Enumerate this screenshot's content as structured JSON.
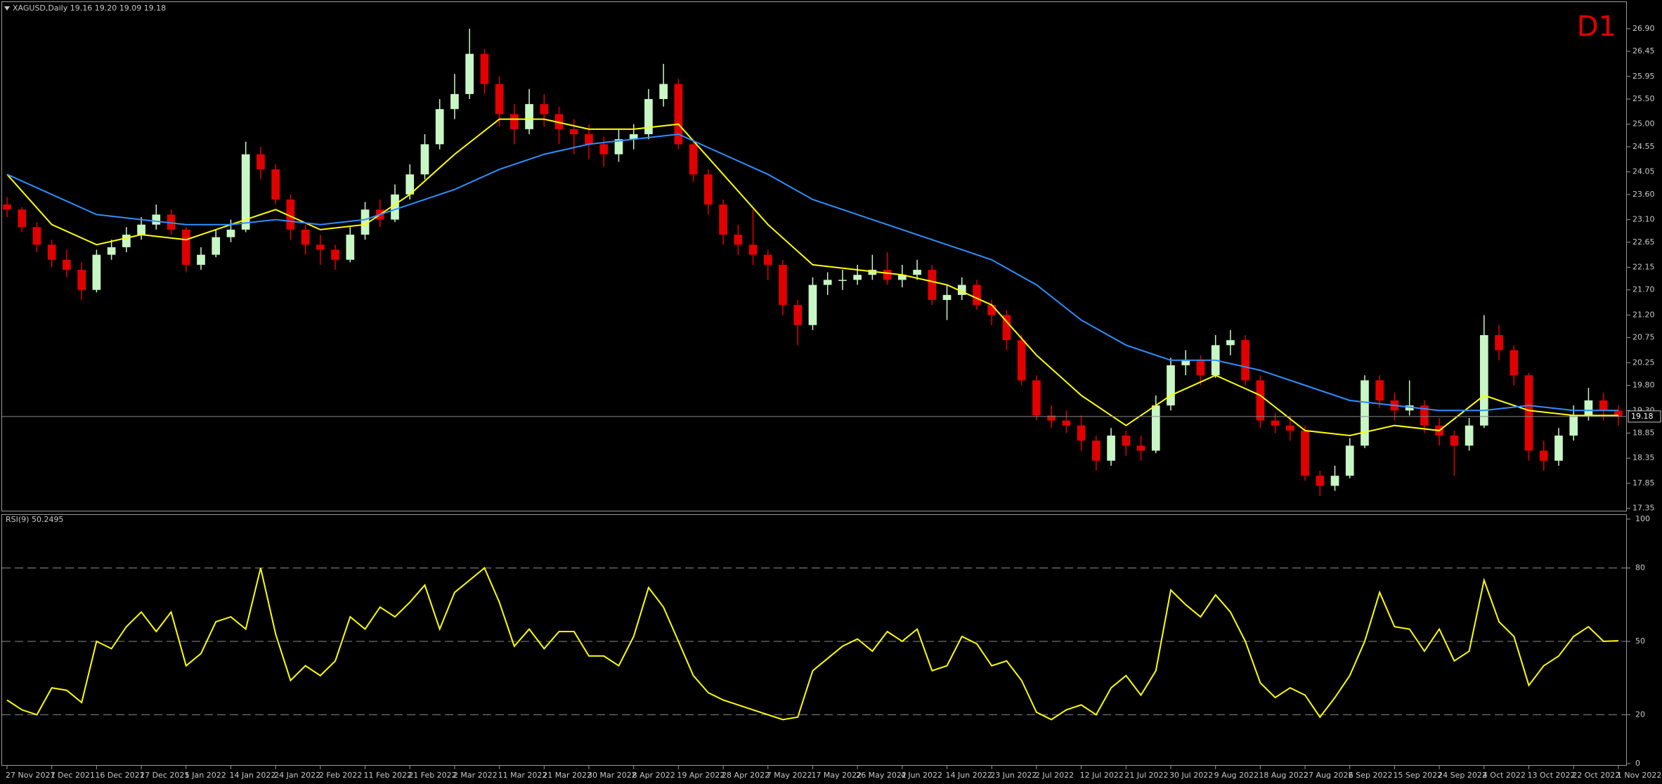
{
  "chart_data": [
    {
      "type": "candlestick",
      "title": "XAGUSD,Daily  19.16 19.20 19.09 19.18",
      "annotation": "D1",
      "up_color": "#c8f7c5",
      "down_color": "#e00000",
      "open": [
        23.4,
        23.3,
        22.95,
        22.6,
        22.3,
        22.1,
        21.7,
        22.4,
        22.55,
        22.8,
        23.0,
        23.2,
        22.9,
        22.2,
        22.4,
        22.75,
        22.9,
        24.4,
        24.1,
        23.5,
        22.9,
        22.6,
        22.5,
        22.3,
        22.8,
        23.3,
        23.1,
        23.6,
        24.0,
        24.6,
        25.3,
        25.6,
        26.4,
        25.8,
        25.2,
        24.9,
        25.4,
        25.2,
        24.9,
        24.8,
        24.6,
        24.4,
        24.7,
        24.8,
        25.5,
        25.8,
        24.6,
        24.0,
        23.4,
        22.8,
        22.6,
        22.4,
        22.2,
        21.4,
        21.0,
        21.8,
        21.9,
        21.9,
        22.0,
        22.1,
        21.9,
        22.0,
        22.1,
        21.5,
        21.6,
        21.8,
        21.4,
        21.2,
        20.7,
        19.9,
        19.2,
        19.1,
        19.0,
        18.7,
        18.3,
        18.8,
        18.6,
        18.5,
        19.4,
        20.2,
        20.3,
        20.0,
        20.6,
        20.7,
        19.9,
        19.1,
        19.0,
        18.9,
        18.0,
        17.8,
        18.0,
        18.6,
        19.9,
        19.5,
        19.3,
        19.4,
        19.0,
        18.8,
        18.6,
        19.0,
        20.8,
        20.5,
        20.0,
        18.5,
        18.3,
        18.8,
        19.2,
        19.5,
        19.3
      ],
      "high": [
        23.55,
        23.35,
        23.05,
        22.7,
        22.5,
        22.25,
        22.5,
        22.7,
        22.95,
        23.15,
        23.4,
        23.3,
        22.95,
        22.55,
        22.9,
        23.1,
        24.65,
        24.55,
        24.2,
        23.6,
        23.0,
        22.8,
        22.6,
        22.95,
        23.45,
        23.5,
        23.8,
        24.2,
        24.8,
        25.5,
        26.0,
        26.9,
        26.5,
        25.95,
        25.4,
        25.7,
        25.6,
        25.35,
        25.1,
        25.0,
        24.75,
        24.9,
        25.0,
        25.7,
        26.2,
        25.9,
        24.7,
        24.1,
        23.5,
        23.0,
        23.3,
        22.5,
        22.3,
        21.5,
        21.95,
        22.05,
        22.1,
        22.2,
        22.4,
        22.45,
        22.2,
        22.3,
        22.2,
        21.8,
        21.95,
        21.9,
        21.5,
        21.3,
        20.8,
        20.0,
        19.4,
        19.3,
        19.2,
        18.8,
        18.95,
        18.9,
        18.8,
        19.6,
        20.35,
        20.5,
        20.4,
        20.8,
        20.9,
        20.8,
        20.0,
        19.25,
        19.2,
        19.0,
        18.1,
        18.2,
        18.75,
        20.0,
        20.0,
        19.65,
        19.9,
        19.5,
        19.15,
        18.9,
        19.15,
        21.2,
        21.0,
        20.6,
        20.05,
        18.7,
        18.95,
        19.4,
        19.75,
        19.65,
        19.4
      ],
      "low": [
        23.15,
        22.85,
        22.45,
        22.15,
        21.95,
        21.5,
        21.65,
        22.3,
        22.45,
        22.7,
        22.9,
        22.8,
        22.05,
        22.1,
        22.35,
        22.65,
        22.85,
        23.9,
        23.4,
        22.7,
        22.4,
        22.2,
        22.1,
        22.25,
        22.7,
        22.95,
        23.05,
        23.5,
        23.9,
        24.5,
        25.1,
        25.5,
        25.6,
        24.95,
        24.6,
        24.8,
        24.95,
        24.6,
        24.4,
        24.3,
        24.15,
        24.25,
        24.5,
        24.7,
        25.35,
        24.5,
        23.85,
        23.2,
        22.6,
        22.4,
        22.2,
        21.9,
        21.2,
        20.6,
        20.9,
        21.6,
        21.7,
        21.8,
        21.9,
        21.8,
        21.75,
        21.9,
        21.4,
        21.1,
        21.5,
        21.3,
        21.0,
        20.5,
        19.8,
        19.1,
        18.95,
        18.85,
        18.5,
        18.1,
        18.2,
        18.4,
        18.3,
        18.45,
        19.3,
        20.0,
        19.8,
        19.95,
        20.4,
        19.8,
        18.95,
        18.85,
        18.7,
        17.9,
        17.6,
        17.7,
        17.95,
        18.55,
        19.35,
        19.1,
        19.2,
        18.85,
        18.6,
        18.0,
        18.5,
        18.95,
        20.3,
        19.8,
        18.3,
        18.1,
        18.2,
        18.7,
        19.1,
        19.1,
        19.0
      ],
      "close": [
        23.3,
        22.95,
        22.6,
        22.3,
        22.1,
        21.7,
        22.4,
        22.55,
        22.8,
        23.0,
        23.2,
        22.9,
        22.2,
        22.4,
        22.75,
        22.9,
        24.4,
        24.1,
        23.5,
        22.9,
        22.6,
        22.5,
        22.3,
        22.8,
        23.3,
        23.1,
        23.6,
        24.0,
        24.6,
        25.3,
        25.6,
        26.4,
        25.8,
        25.2,
        24.9,
        25.4,
        25.2,
        24.9,
        24.8,
        24.6,
        24.4,
        24.7,
        24.8,
        25.5,
        25.8,
        24.6,
        24.0,
        23.4,
        22.8,
        22.6,
        22.4,
        22.2,
        21.4,
        21.0,
        21.8,
        21.9,
        21.9,
        22.0,
        22.1,
        21.9,
        22.0,
        22.1,
        21.5,
        21.6,
        21.8,
        21.4,
        21.2,
        20.7,
        19.9,
        19.2,
        19.1,
        19.0,
        18.7,
        18.3,
        18.8,
        18.6,
        18.5,
        19.4,
        20.2,
        20.3,
        20.0,
        20.6,
        20.7,
        19.9,
        19.1,
        19.0,
        18.9,
        18.0,
        17.8,
        18.0,
        18.6,
        19.9,
        19.5,
        19.3,
        19.4,
        19.0,
        18.8,
        18.6,
        19.0,
        20.8,
        20.5,
        20.0,
        18.5,
        18.3,
        18.8,
        19.2,
        19.5,
        19.3,
        19.18
      ],
      "lines": [
        {
          "color": "#ffff00",
          "x": [
            0,
            3,
            6,
            9,
            12,
            15,
            18,
            21,
            24,
            27,
            30,
            33,
            36,
            39,
            42,
            45,
            48,
            51,
            54,
            57,
            60,
            63,
            66,
            69,
            72,
            75,
            78,
            81,
            84,
            87,
            90,
            93,
            96,
            99,
            102,
            105,
            108
          ],
          "values": [
            24.0,
            23.0,
            22.6,
            22.8,
            22.7,
            23.0,
            23.3,
            22.9,
            23.0,
            23.6,
            24.4,
            25.1,
            25.1,
            24.9,
            24.9,
            25.0,
            24.0,
            23.0,
            22.2,
            22.1,
            22.0,
            21.8,
            21.4,
            20.4,
            19.6,
            19.0,
            19.6,
            20.0,
            19.6,
            18.9,
            18.8,
            19.0,
            18.9,
            19.6,
            19.3,
            19.2,
            19.2
          ]
        },
        {
          "color": "#2f8fff",
          "x": [
            0,
            3,
            6,
            9,
            12,
            15,
            18,
            21,
            24,
            27,
            30,
            33,
            36,
            39,
            42,
            45,
            48,
            51,
            54,
            57,
            60,
            63,
            66,
            69,
            72,
            75,
            78,
            81,
            84,
            87,
            90,
            93,
            96,
            99,
            102,
            105,
            108
          ],
          "values": [
            24.0,
            23.6,
            23.2,
            23.1,
            23.0,
            23.0,
            23.1,
            23.0,
            23.1,
            23.4,
            23.7,
            24.1,
            24.4,
            24.6,
            24.7,
            24.8,
            24.4,
            24.0,
            23.5,
            23.2,
            22.9,
            22.6,
            22.3,
            21.8,
            21.1,
            20.6,
            20.3,
            20.3,
            20.1,
            19.8,
            19.5,
            19.4,
            19.3,
            19.3,
            19.4,
            19.3,
            19.3
          ]
        }
      ],
      "current_price": 19.18,
      "xlim": [
        -0.33,
        108.57
      ],
      "ylim": [
        17.29,
        27.43
      ],
      "yticks": [
        {
          "value": 26.9,
          "label": "26.90"
        },
        {
          "value": 26.45,
          "label": "26.45"
        },
        {
          "value": 25.95,
          "label": "25.95"
        },
        {
          "value": 25.5,
          "label": "25.50"
        },
        {
          "value": 25.0,
          "label": "25.00"
        },
        {
          "value": 24.55,
          "label": "24.55"
        },
        {
          "value": 24.05,
          "label": "24.05"
        },
        {
          "value": 23.6,
          "label": "23.60"
        },
        {
          "value": 23.1,
          "label": "23.10"
        },
        {
          "value": 22.65,
          "label": "22.65"
        },
        {
          "value": 22.15,
          "label": "22.15"
        },
        {
          "value": 21.7,
          "label": "21.70"
        },
        {
          "value": 21.2,
          "label": "21.20"
        },
        {
          "value": 20.75,
          "label": "20.75"
        },
        {
          "value": 20.25,
          "label": "20.25"
        },
        {
          "value": 19.8,
          "label": "19.80"
        },
        {
          "value": 19.3,
          "label": "19.30"
        },
        {
          "value": 18.85,
          "label": "18.85"
        },
        {
          "value": 18.35,
          "label": "18.35"
        },
        {
          "value": 17.85,
          "label": "17.85"
        },
        {
          "value": 17.35,
          "label": "17.35"
        }
      ]
    },
    {
      "type": "line",
      "title": "RSI(9) 50.2495",
      "color": "#ffff00",
      "values": [
        26,
        22,
        20,
        31,
        30,
        25,
        50,
        47,
        56,
        62,
        54,
        62,
        40,
        45,
        58,
        60,
        55,
        80,
        53,
        34,
        40,
        36,
        42,
        60,
        55,
        64,
        60,
        66,
        73,
        55,
        70,
        75,
        80,
        66,
        48,
        55,
        47,
        54,
        54,
        44,
        44,
        40,
        52,
        72,
        64,
        50,
        36,
        29,
        26,
        24,
        22,
        20,
        18,
        19,
        38,
        43,
        48,
        51,
        46,
        54,
        50,
        55,
        38,
        40,
        52,
        49,
        40,
        42,
        34,
        21,
        18,
        22,
        24,
        20,
        31,
        36,
        28,
        38,
        71,
        65,
        60,
        69,
        62,
        50,
        33,
        27,
        31,
        28,
        19,
        27,
        36,
        50,
        70,
        56,
        55,
        46,
        55,
        42,
        46,
        75,
        58,
        52,
        32,
        40,
        44,
        52,
        56,
        50,
        50.25
      ],
      "xlim": [
        -0.33,
        108.57
      ],
      "ylim": [
        -0.87,
        101.7
      ],
      "yticks": [
        0,
        20,
        50,
        80,
        100
      ],
      "levels": [
        20,
        50,
        80
      ],
      "xticks": [
        {
          "value": 0,
          "label": "27 Nov 2021"
        },
        {
          "value": 3,
          "label": "7 Dec 2021"
        },
        {
          "value": 6,
          "label": "16 Dec 2021"
        },
        {
          "value": 9,
          "label": "27 Dec 2021"
        },
        {
          "value": 12,
          "label": "5 Jan 2022"
        },
        {
          "value": 15,
          "label": "14 Jan 2022"
        },
        {
          "value": 18,
          "label": "24 Jan 2022"
        },
        {
          "value": 21,
          "label": "2 Feb 2022"
        },
        {
          "value": 24,
          "label": "11 Feb 2022"
        },
        {
          "value": 27,
          "label": "21 Feb 2022"
        },
        {
          "value": 30,
          "label": "2 Mar 2022"
        },
        {
          "value": 33,
          "label": "11 Mar 2022"
        },
        {
          "value": 36,
          "label": "21 Mar 2022"
        },
        {
          "value": 39,
          "label": "30 Mar 2022"
        },
        {
          "value": 42,
          "label": "8 Apr 2022"
        },
        {
          "value": 45,
          "label": "19 Apr 2022"
        },
        {
          "value": 48,
          "label": "28 Apr 2022"
        },
        {
          "value": 51,
          "label": "7 May 2022"
        },
        {
          "value": 54,
          "label": "17 May 2022"
        },
        {
          "value": 57,
          "label": "26 May 2022"
        },
        {
          "value": 60,
          "label": "4 Jun 2022"
        },
        {
          "value": 63,
          "label": "14 Jun 2022"
        },
        {
          "value": 66,
          "label": "23 Jun 2022"
        },
        {
          "value": 69,
          "label": "2 Jul 2022"
        },
        {
          "value": 72,
          "label": "12 Jul 2022"
        },
        {
          "value": 75,
          "label": "21 Jul 2022"
        },
        {
          "value": 78,
          "label": "30 Jul 2022"
        },
        {
          "value": 81,
          "label": "9 Aug 2022"
        },
        {
          "value": 84,
          "label": "18 Aug 2022"
        },
        {
          "value": 87,
          "label": "27 Aug 2022"
        },
        {
          "value": 90,
          "label": "6 Sep 2022"
        },
        {
          "value": 93,
          "label": "15 Sep 2022"
        },
        {
          "value": 96,
          "label": "24 Sep 2022"
        },
        {
          "value": 99,
          "label": "4 Oct 2022"
        },
        {
          "value": 102,
          "label": "13 Oct 2022"
        },
        {
          "value": 105,
          "label": "22 Oct 2022"
        },
        {
          "value": 108,
          "label": "1 Nov 2022"
        }
      ]
    }
  ]
}
